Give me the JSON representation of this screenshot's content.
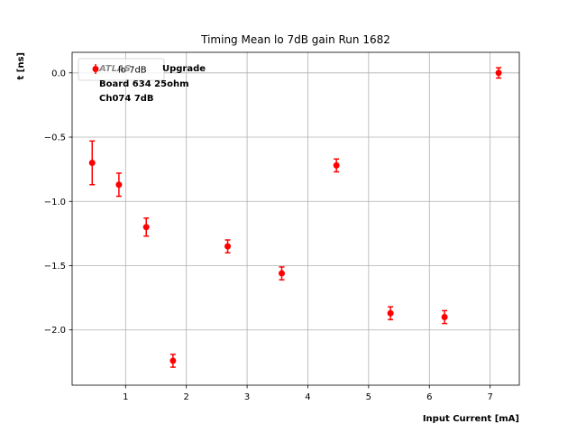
{
  "chart_data": {
    "type": "scatter",
    "title": "Timing Mean lo 7dB gain Run 1682",
    "xlabel": "Input Current [mA]",
    "ylabel": "t [ns]",
    "xlim": [
      0.12,
      7.48
    ],
    "ylim": [
      -2.43,
      0.16
    ],
    "xticks": [
      1,
      2,
      3,
      4,
      5,
      6,
      7
    ],
    "xtick_labels": [
      "1",
      "2",
      "3",
      "4",
      "5",
      "6",
      "7"
    ],
    "yticks": [
      0.0,
      -0.5,
      -1.0,
      -1.5,
      -2.0
    ],
    "ytick_labels": [
      "0.0",
      "−0.5",
      "−1.0",
      "−1.5",
      "−2.0"
    ],
    "grid": true,
    "legend_position": "top-left",
    "series": [
      {
        "name": "lo 7dB",
        "color": "#ff0000",
        "marker": "circle",
        "x": [
          0.45,
          0.89,
          1.34,
          1.78,
          2.68,
          3.57,
          4.47,
          5.36,
          6.25,
          7.14
        ],
        "y": [
          -0.7,
          -0.87,
          -1.2,
          -2.24,
          -1.35,
          -1.56,
          -0.72,
          -1.87,
          -1.9,
          0.0
        ],
        "yerr": [
          0.17,
          0.09,
          0.07,
          0.05,
          0.05,
          0.05,
          0.05,
          0.05,
          0.05,
          0.04
        ]
      }
    ],
    "annotations": {
      "atlas_label": "ATLAS",
      "atlas_suffix": "Upgrade",
      "line2": "Board 634 25ohm",
      "line3": "Ch074 7dB"
    }
  }
}
